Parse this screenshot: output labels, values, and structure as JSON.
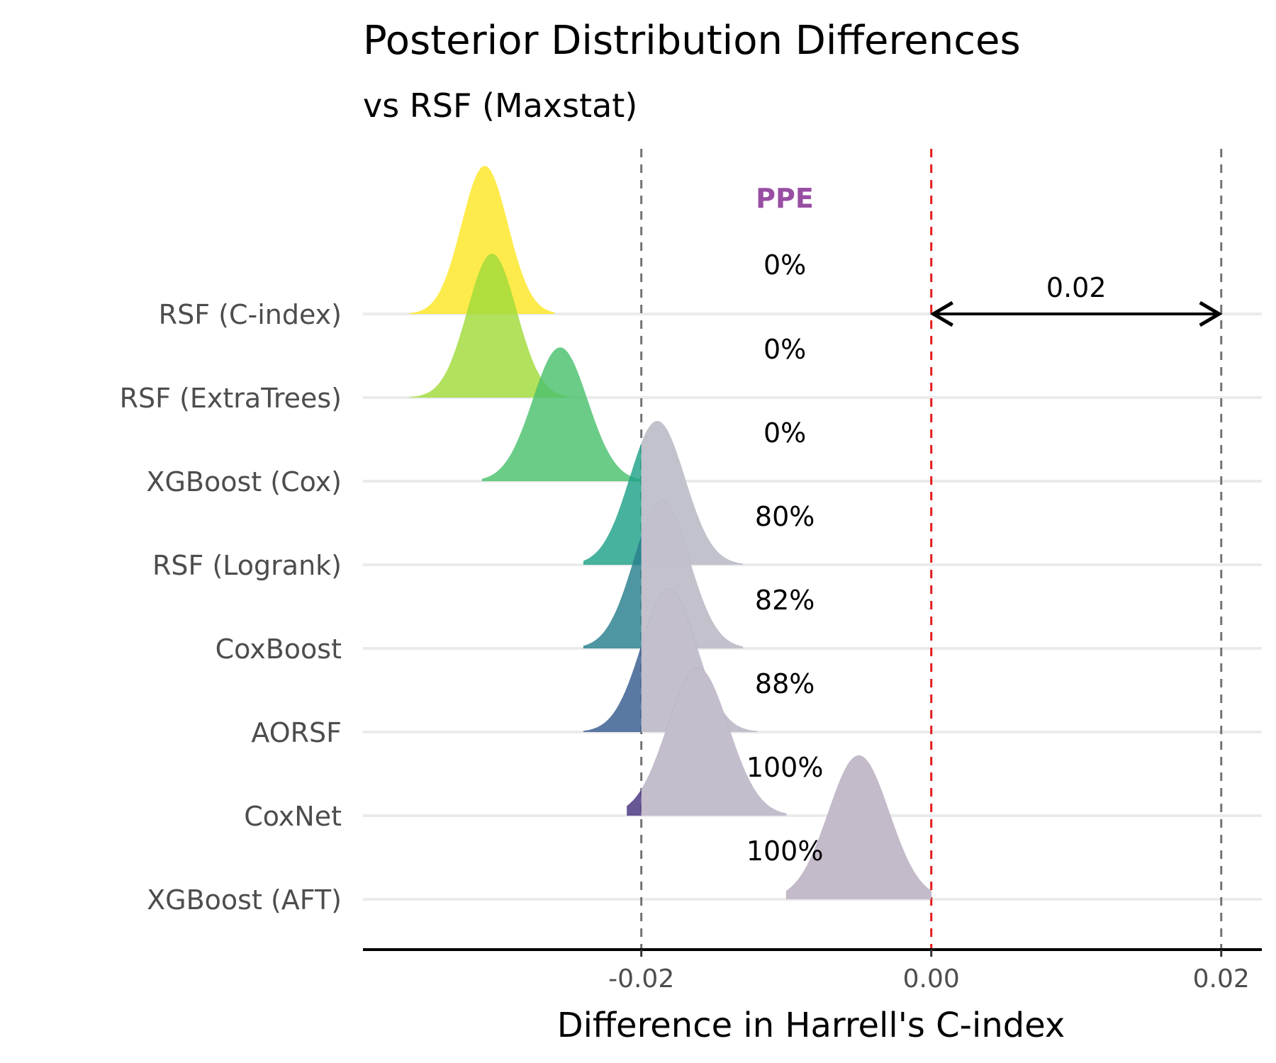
{
  "chart_data": {
    "type": "ridgeline",
    "title": "Posterior Distribution Differences",
    "subtitle": "vs RSF (Maxstat)",
    "xlabel": "Difference in Harrell's C-index",
    "xlim": [
      -0.0392,
      0.0228
    ],
    "x_ticks": [
      -0.02,
      0.0,
      0.02
    ],
    "x_tick_labels": [
      "-0.02",
      "0.00",
      "0.02"
    ],
    "reference_lines": [
      {
        "x": -0.02,
        "style": "dashed",
        "color": "#737373"
      },
      {
        "x": 0.0,
        "style": "dashed",
        "color": "#e41a1c"
      },
      {
        "x": 0.02,
        "style": "dashed",
        "color": "#737373"
      }
    ],
    "rope_annotation": {
      "from": 0.0,
      "to": 0.02,
      "label": "0.02",
      "row": "RSF (C-index)"
    },
    "ppe_header": "PPE",
    "grid": "horizontal",
    "categories": [
      "RSF (C-index)",
      "RSF (ExtraTrees)",
      "XGBoost (Cox)",
      "RSF (Logrank)",
      "CoxBoost",
      "AORSF",
      "CoxNet",
      "XGBoost (AFT)"
    ],
    "series": [
      {
        "name": "RSF (C-index)",
        "mode": -0.0308,
        "sd": 0.0016,
        "min": -0.036,
        "max": -0.026,
        "height": 1.77,
        "ppe": "0%",
        "color": "#fde725"
      },
      {
        "name": "RSF (ExtraTrees)",
        "mode": -0.0303,
        "sd": 0.0017,
        "min": -0.036,
        "max": -0.025,
        "height": 1.72,
        "ppe": "0%",
        "color": "#a0da39"
      },
      {
        "name": "XGBoost (Cox)",
        "mode": -0.0256,
        "sd": 0.0019,
        "min": -0.031,
        "max": -0.02,
        "height": 1.6,
        "ppe": "0%",
        "color": "#4ac16d"
      },
      {
        "name": "RSF (Logrank)",
        "mode": -0.0189,
        "sd": 0.0019,
        "min": -0.024,
        "max": -0.013,
        "height": 1.72,
        "ppe": "80%",
        "color": "#1fa187"
      },
      {
        "name": "CoxBoost",
        "mode": -0.0186,
        "sd": 0.0019,
        "min": -0.024,
        "max": -0.013,
        "height": 1.77,
        "ppe": "82%",
        "color": "#277f8e"
      },
      {
        "name": "AORSF",
        "mode": -0.0181,
        "sd": 0.0019,
        "min": -0.024,
        "max": -0.012,
        "height": 1.71,
        "ppe": "88%",
        "color": "#365c8d"
      },
      {
        "name": "CoxNet",
        "mode": -0.0161,
        "sd": 0.0021,
        "min": -0.021,
        "max": -0.01,
        "height": 1.77,
        "ppe": "100%",
        "color": "#46327e"
      },
      {
        "name": "XGBoost (AFT)",
        "mode": -0.005,
        "sd": 0.0021,
        "min": -0.01,
        "max": 0.0,
        "height": 1.72,
        "ppe": "100%",
        "color": "#440154"
      }
    ],
    "rope_overlay_color": "#c9c3cf"
  }
}
